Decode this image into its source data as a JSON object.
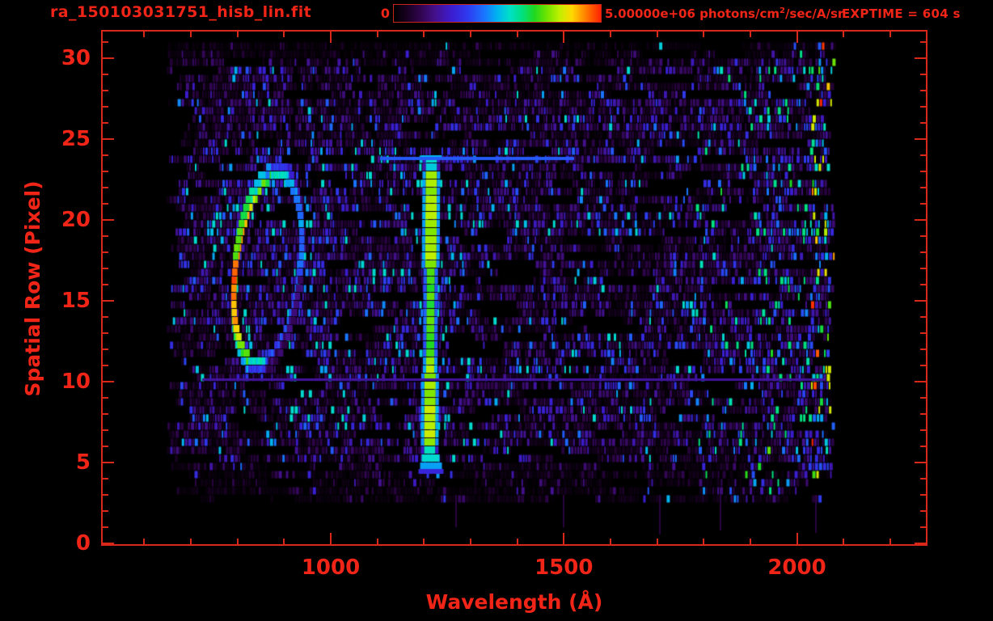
{
  "header": {
    "title": "ra_150103031751_hisb_lin.fit",
    "exptime": "EXPTIME = 604 s",
    "colorbar": {
      "min_label": "0",
      "max_label": "5.00000e+06",
      "units_pre": " photons/cm",
      "units_sup": "2",
      "units_post": "/sec/A/sr"
    }
  },
  "chart_data": {
    "type": "heatmap",
    "title": "ra_150103031751_hisb_lin.fit",
    "exposure_time_s": 604,
    "xlabel": "Wavelength (Å)",
    "ylabel": "Spatial Row (Pixel)",
    "x_ticks_major": [
      1000,
      1500,
      2000
    ],
    "x_minor_step": 100,
    "x_minor_range": [
      600,
      2200
    ],
    "x_range": [
      506,
      2282
    ],
    "y_ticks_major": [
      0,
      5,
      10,
      15,
      20,
      25,
      30
    ],
    "y_minor_step": 1,
    "y_range": [
      0,
      31.8
    ],
    "colorbar_range_photons": [
      0,
      5000000
    ],
    "colormap_stops": [
      [
        0.0,
        "#000000"
      ],
      [
        0.06,
        "#16001f"
      ],
      [
        0.13,
        "#31054f"
      ],
      [
        0.2,
        "#44108c"
      ],
      [
        0.28,
        "#3b1cd0"
      ],
      [
        0.36,
        "#2e3cf0"
      ],
      [
        0.44,
        "#1877ff"
      ],
      [
        0.5,
        "#00b4f0"
      ],
      [
        0.56,
        "#00e0c8"
      ],
      [
        0.62,
        "#00e080"
      ],
      [
        0.68,
        "#20d820"
      ],
      [
        0.74,
        "#70e400"
      ],
      [
        0.8,
        "#c0f000"
      ],
      [
        0.86,
        "#ffd800"
      ],
      [
        0.92,
        "#ff8800"
      ],
      [
        1.0,
        "#ff2000"
      ]
    ],
    "data_extent": {
      "wavelength": [
        680,
        2085
      ],
      "rows": [
        2.5,
        31
      ]
    },
    "features": {
      "emission_line": {
        "wavelength": 1216,
        "row_span": [
          5,
          24
        ],
        "core_level": 0.7,
        "bright_level": 0.78,
        "tip_level": 0.56,
        "description": "bright vertical emission line, green core, cyan tips, blue wings"
      },
      "loop": {
        "center_wavelength": 865,
        "center_row": 17.2,
        "semi_axis_wavelength": 70,
        "semi_axis_rows": 5.8,
        "tilt_wavelength": 21,
        "left_edge_level": 0.88,
        "description": "elliptical loop, yellow-green left edge, cyan top, blue right side"
      },
      "right_bright_band": {
        "wavelength_span": [
          1780,
          2085
        ],
        "edge_column_span": [
          2030,
          2085
        ],
        "description": "blue-cyan noise band brightening to green with red specks at right edge"
      }
    },
    "noise_seed": 7
  },
  "style": {
    "text_color": "#f02518",
    "axis_color": "#d8281a",
    "background": "#000000"
  }
}
